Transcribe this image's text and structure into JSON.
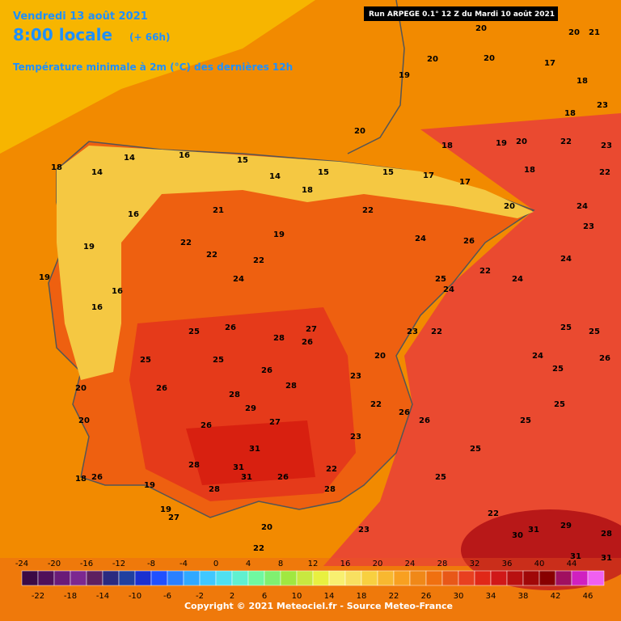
{
  "header": {
    "date": "Vendredi 13 août 2021",
    "time": "8:00 locale",
    "offset": "(+ 66h)",
    "variable": "Température minimale à 2m (°C) des dernières 12h",
    "run": "Run ARPEGE 0.1° 12 Z du Mardi 10 août 2021"
  },
  "legend": {
    "top_labels": [
      -24,
      -20,
      -16,
      -12,
      -8,
      -4,
      0,
      4,
      8,
      12,
      16,
      20,
      24,
      28,
      32,
      36,
      40,
      44
    ],
    "bottom_labels": [
      -22,
      -18,
      -14,
      -10,
      -6,
      -2,
      2,
      6,
      10,
      14,
      18,
      22,
      26,
      30,
      34,
      38,
      42,
      46
    ],
    "colors": [
      "#3b0a45",
      "#50105a",
      "#6a1b78",
      "#7c2890",
      "#5e2060",
      "#2a2a80",
      "#2040a0",
      "#1a30d0",
      "#2050ff",
      "#2a80ff",
      "#30a8ff",
      "#40c8ff",
      "#50e0f0",
      "#60f0d0",
      "#70f8a0",
      "#80f070",
      "#a0e840",
      "#c8e840",
      "#e8f040",
      "#f8f070",
      "#f8e060",
      "#f8d040",
      "#f8b830",
      "#f8a020",
      "#f08818",
      "#f07010",
      "#e85818",
      "#e84020",
      "#e02818",
      "#d01818",
      "#b81010",
      "#a00808",
      "#880000",
      "#a01060",
      "#d020c0",
      "#f060f0"
    ]
  },
  "stations": [
    18,
    14,
    14,
    16,
    15,
    14,
    15,
    15,
    17,
    17,
    20,
    18,
    20,
    19,
    20,
    22,
    22,
    23,
    24,
    23,
    24,
    24,
    26,
    24,
    22,
    18,
    19,
    21,
    22,
    22,
    24,
    22,
    16,
    19,
    16,
    19,
    16,
    20,
    20,
    25,
    26,
    25,
    26,
    28,
    27,
    26,
    26,
    28,
    28,
    25,
    29,
    27,
    26,
    31,
    31,
    31,
    28,
    28,
    27,
    19,
    26,
    18,
    19,
    20,
    26,
    28,
    22,
    23,
    22,
    23,
    20,
    23,
    22,
    25,
    24,
    22,
    26,
    26,
    25,
    25,
    25,
    25,
    25,
    25,
    26,
    24,
    25,
    22,
    30,
    31,
    29,
    28,
    31,
    31,
    23,
    22,
    20,
    20,
    20,
    19,
    20,
    21,
    17,
    18,
    18,
    23,
    18
  ],
  "copyright": "Copyright © 2021 Meteociel.fr - Source Meteo-France"
}
